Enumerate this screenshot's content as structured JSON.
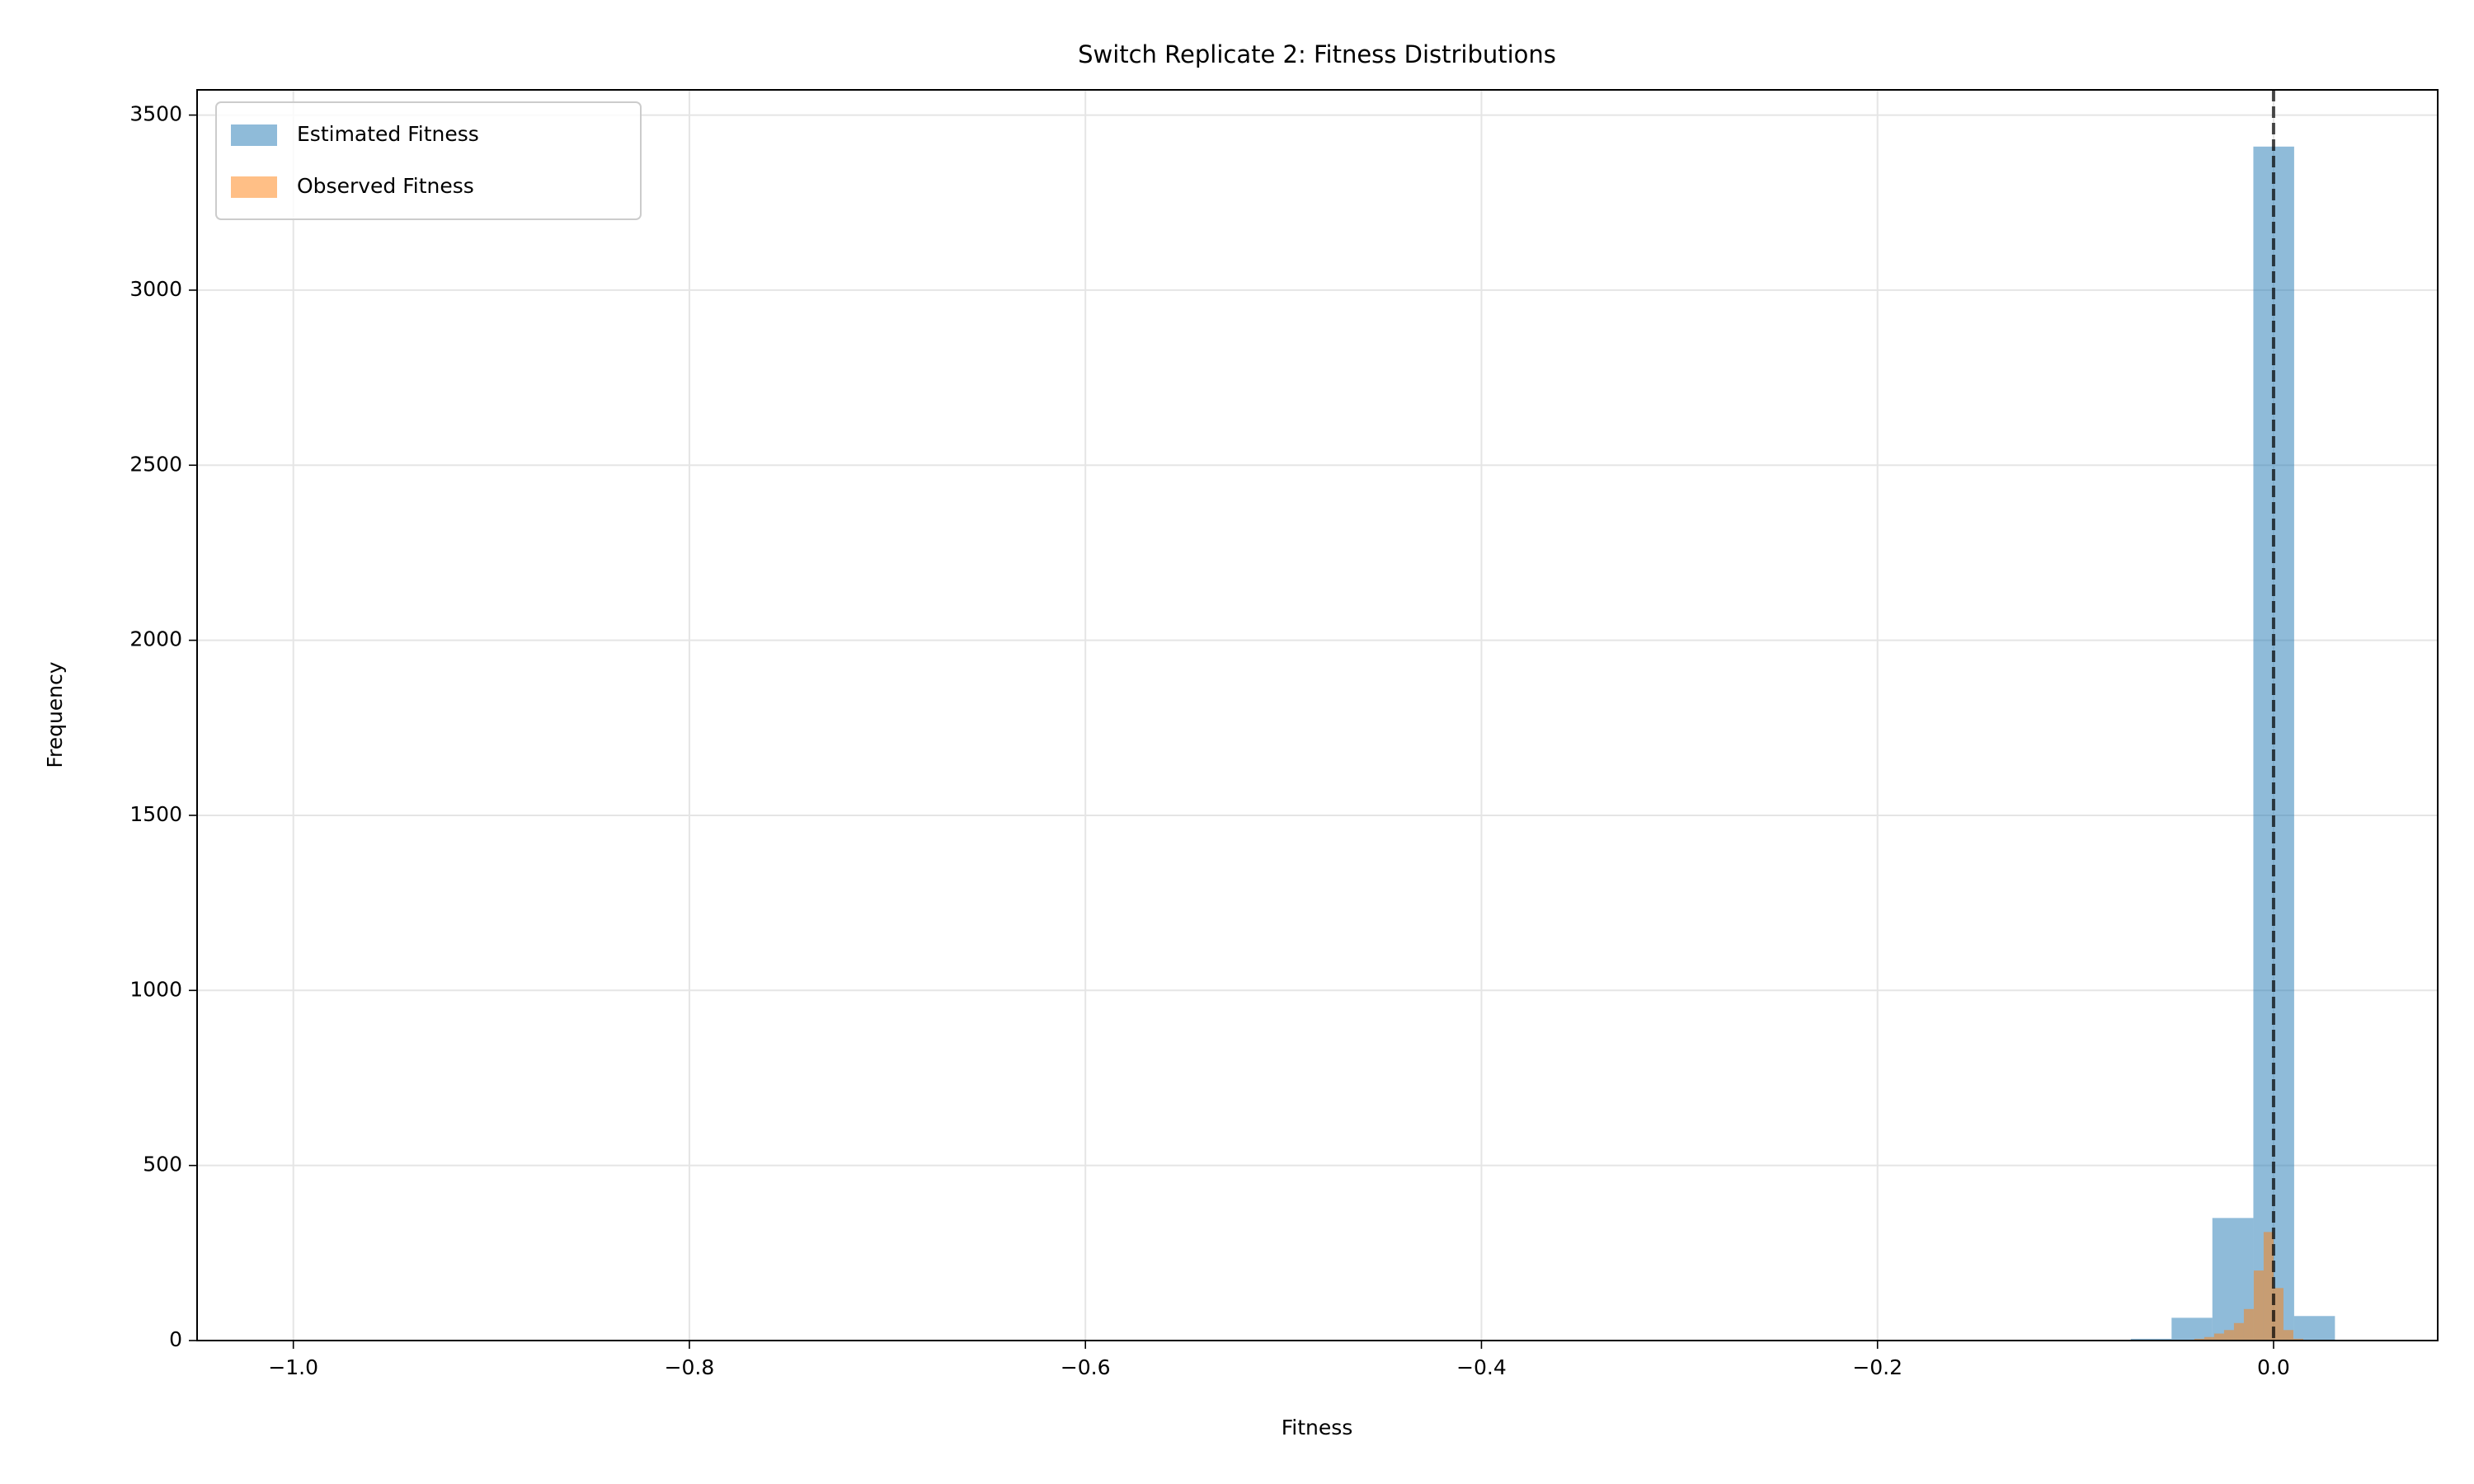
{
  "chart_data": {
    "type": "histogram",
    "title": "Switch Replicate 2: Fitness Distributions",
    "xlabel": "Fitness",
    "ylabel": "Frequency",
    "xlim": [
      -1.0486,
      0.0829
    ],
    "ylim": [
      0,
      3572
    ],
    "xticks": [
      {
        "value": -1.0,
        "label": "−1.0"
      },
      {
        "value": -0.8,
        "label": "−0.8"
      },
      {
        "value": -0.6,
        "label": "−0.6"
      },
      {
        "value": -0.4,
        "label": "−0.4"
      },
      {
        "value": -0.2,
        "label": "−0.2"
      },
      {
        "value": 0.0,
        "label": "0.0"
      }
    ],
    "yticks": [
      0,
      500,
      1000,
      1500,
      2000,
      2500,
      3000,
      3500
    ],
    "grid": true,
    "legend": "upper left",
    "vline": 0,
    "series": [
      {
        "name": "Estimated Fitness",
        "color": "#1f77b4",
        "bins": [
          -1.0,
          -0.9794,
          -0.9588,
          -0.9381,
          -0.9175,
          -0.8969,
          -0.8763,
          -0.8557,
          -0.835,
          -0.8144,
          -0.7938,
          -0.7732,
          -0.7526,
          -0.7319,
          -0.7113,
          -0.6907,
          -0.6701,
          -0.6495,
          -0.6288,
          -0.6082,
          -0.5876,
          -0.567,
          -0.5464,
          -0.5257,
          -0.5051,
          -0.4845,
          -0.4639,
          -0.4433,
          -0.4226,
          -0.402,
          -0.3814,
          -0.3608,
          -0.3402,
          -0.3195,
          -0.2989,
          -0.2783,
          -0.2577,
          -0.2371,
          -0.2164,
          -0.1958,
          -0.1752,
          -0.1546,
          -0.134,
          -0.1133,
          -0.0927,
          -0.0721,
          -0.0515,
          -0.0309,
          -0.0102,
          0.0104,
          0.031
        ],
        "values": [
          1,
          0,
          0,
          0,
          0,
          0,
          0,
          0,
          0,
          0,
          0,
          0,
          0,
          0,
          0,
          0,
          0,
          0,
          0,
          0,
          0,
          0,
          0,
          0,
          0,
          0,
          0,
          0,
          0,
          0,
          0,
          0,
          0,
          0,
          0,
          0,
          0,
          0,
          0,
          0,
          0,
          0,
          0,
          0,
          0,
          5,
          65,
          350,
          3410,
          70
        ]
      },
      {
        "name": "Observed Fitness",
        "color": "#ff7f0e",
        "bins": [
          -0.04,
          -0.035,
          -0.03,
          -0.025,
          -0.02,
          -0.015,
          -0.01,
          -0.005,
          0.0,
          0.005,
          0.01,
          0.015
        ],
        "values": [
          5,
          10,
          20,
          30,
          50,
          90,
          200,
          310,
          150,
          30,
          5
        ]
      }
    ]
  }
}
